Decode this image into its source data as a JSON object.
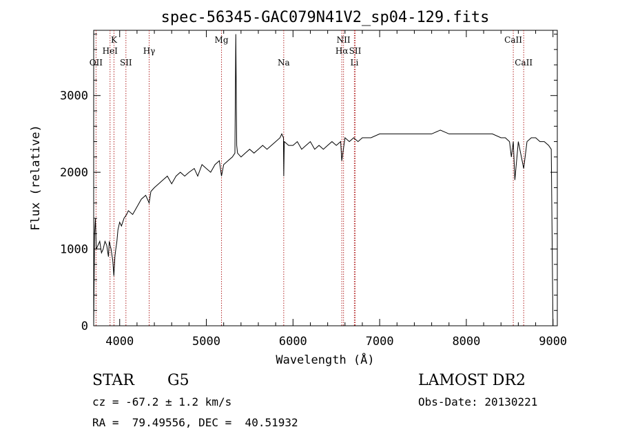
{
  "chart_data": {
    "type": "line",
    "title": "spec-56345-GAC079N41V2_sp04-129.fits",
    "xlabel": "Wavelength (Å)",
    "ylabel": "Flux (relative)",
    "xlim": [
      3700,
      9050
    ],
    "ylim": [
      0,
      3850
    ],
    "xticks": [
      4000,
      5000,
      6000,
      7000,
      8000,
      9000
    ],
    "yticks": [
      0,
      1000,
      2000,
      3000
    ],
    "grid": false,
    "series": [
      {
        "x": [
          3700,
          3710,
          3720,
          3730,
          3750,
          3770,
          3790,
          3810,
          3830,
          3850,
          3870,
          3880,
          3900,
          3920,
          3933,
          3945,
          3955,
          3968,
          3980,
          4000,
          4020,
          4050,
          4080,
          4100,
          4150,
          4200,
          4250,
          4300,
          4340,
          4360,
          4400,
          4450,
          4500,
          4550,
          4600,
          4650,
          4700,
          4750,
          4800,
          4861,
          4900,
          4950,
          5000,
          5050,
          5100,
          5150,
          5175,
          5200,
          5250,
          5300,
          5330,
          5340,
          5350,
          5360,
          5400,
          5450,
          5500,
          5550,
          5600,
          5650,
          5700,
          5750,
          5800,
          5850,
          5870,
          5890,
          5893,
          5900,
          5950,
          6000,
          6050,
          6100,
          6150,
          6200,
          6250,
          6300,
          6350,
          6400,
          6450,
          6500,
          6550,
          6563,
          6600,
          6650,
          6700,
          6750,
          6800,
          6900,
          7000,
          7100,
          7200,
          7300,
          7400,
          7500,
          7600,
          7700,
          7800,
          7900,
          8000,
          8100,
          8200,
          8300,
          8400,
          8450,
          8498,
          8520,
          8542,
          8560,
          8600,
          8662,
          8700,
          8750,
          8800,
          8850,
          8900,
          8950,
          8980,
          9000
        ],
        "y": [
          0,
          1200,
          1400,
          1000,
          1050,
          1100,
          950,
          1000,
          1100,
          1050,
          900,
          1100,
          1000,
          850,
          650,
          900,
          1000,
          1100,
          1250,
          1350,
          1300,
          1400,
          1450,
          1500,
          1450,
          1550,
          1650,
          1700,
          1600,
          1750,
          1800,
          1850,
          1900,
          1950,
          1850,
          1950,
          2000,
          1950,
          2000,
          2050,
          1950,
          2100,
          2050,
          2000,
          2100,
          2150,
          1950,
          2100,
          2150,
          2200,
          2250,
          3800,
          2350,
          2250,
          2200,
          2250,
          2300,
          2250,
          2300,
          2350,
          2300,
          2350,
          2400,
          2450,
          2500,
          2450,
          1950,
          2400,
          2350,
          2350,
          2400,
          2300,
          2350,
          2400,
          2300,
          2350,
          2300,
          2350,
          2400,
          2350,
          2400,
          2150,
          2450,
          2400,
          2450,
          2400,
          2450,
          2450,
          2500,
          2500,
          2500,
          2500,
          2500,
          2500,
          2500,
          2550,
          2500,
          2500,
          2500,
          2500,
          2500,
          2500,
          2450,
          2450,
          2400,
          2200,
          2400,
          1900,
          2400,
          2050,
          2400,
          2450,
          2450,
          2400,
          2400,
          2350,
          2300,
          0
        ]
      }
    ],
    "lines": [
      {
        "label": "OII",
        "wavelength": 3727,
        "row": 3
      },
      {
        "label": "K",
        "wavelength": 3934,
        "row": 1
      },
      {
        "label": "HeI",
        "wavelength": 3889,
        "row": 2
      },
      {
        "label": "SII",
        "wavelength": 4072,
        "row": 3
      },
      {
        "label": "Hγ",
        "wavelength": 4340,
        "row": 2
      },
      {
        "label": "Mg",
        "wavelength": 5175,
        "row": 1
      },
      {
        "label": "Na",
        "wavelength": 5893,
        "row": 3
      },
      {
        "label": "NII",
        "wavelength": 6583,
        "row": 1
      },
      {
        "label": "Hα",
        "wavelength": 6563,
        "row": 2
      },
      {
        "label": "SII",
        "wavelength": 6717,
        "row": 2
      },
      {
        "label": "Li",
        "wavelength": 6708,
        "row": 3
      },
      {
        "label": "CaII",
        "wavelength": 8542,
        "row": 1
      },
      {
        "label": "CaII",
        "wavelength": 8662,
        "row": 3
      }
    ]
  },
  "info": {
    "class": "STAR",
    "subclass": "G5",
    "survey": "LAMOST DR2",
    "cz": "cz = -67.2 ± 1.2 km/s",
    "obsdate": "Obs-Date: 20130221",
    "radec": "RA =  79.49556, DEC =  40.51932"
  },
  "colors": {
    "axis": "#000000",
    "spectrum": "#000000",
    "lineMarker": "#b22222"
  }
}
